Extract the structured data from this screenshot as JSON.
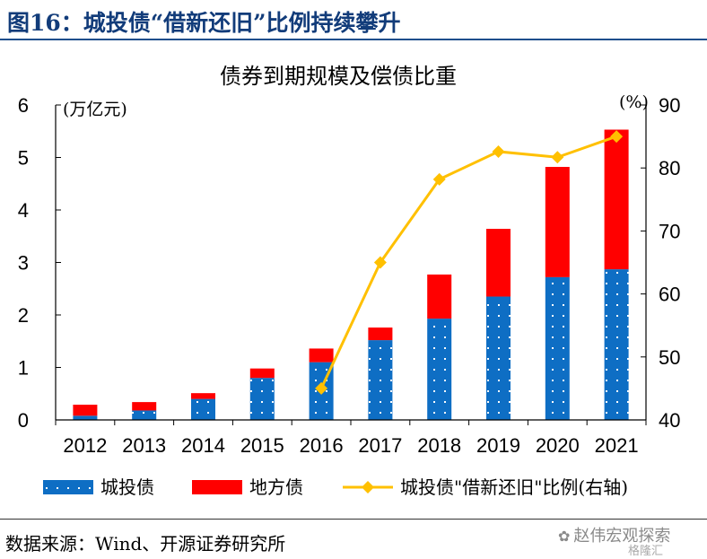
{
  "figure": {
    "title": "图16：城投债“借新还旧”比例持续攀升",
    "source": "数据来源：Wind、开源证券研究所",
    "watermark": "赵伟宏观探索",
    "watermark_sub": "格隆汇"
  },
  "colors": {
    "chengtou": "#0e6ec4",
    "difang": "#ff0000",
    "ratio": "#ffc000",
    "title": "#123c7a"
  },
  "chart_data": {
    "type": "bar",
    "title": "债券到期规模及偿债比重",
    "left_axis_unit": "(万亿元)",
    "right_axis_unit": "(%)",
    "categories": [
      "2012",
      "2013",
      "2014",
      "2015",
      "2016",
      "2017",
      "2018",
      "2019",
      "2020",
      "2021"
    ],
    "ylim_left": [
      0,
      6
    ],
    "yticks_left": [
      "0",
      "1",
      "2",
      "3",
      "4",
      "5",
      "6"
    ],
    "ylim_right": [
      40,
      90
    ],
    "yticks_right": [
      "40",
      "50",
      "60",
      "70",
      "80",
      "90"
    ],
    "series": [
      {
        "name": "城投债",
        "kind": "stacked_bar",
        "values": [
          0.08,
          0.18,
          0.4,
          0.8,
          1.1,
          1.52,
          1.93,
          2.35,
          2.72,
          2.87
        ]
      },
      {
        "name": "地方债",
        "kind": "stacked_bar",
        "values": [
          0.21,
          0.16,
          0.11,
          0.18,
          0.26,
          0.24,
          0.84,
          1.29,
          2.1,
          2.66
        ]
      },
      {
        "name": "城投债\"借新还旧\"比例(右轴)",
        "kind": "line",
        "axis": "right",
        "x": [
          "2016",
          "2017",
          "2018",
          "2019",
          "2020",
          "2021"
        ],
        "values": [
          45.0,
          65.0,
          78.2,
          82.6,
          81.7,
          85.0
        ]
      }
    ]
  }
}
